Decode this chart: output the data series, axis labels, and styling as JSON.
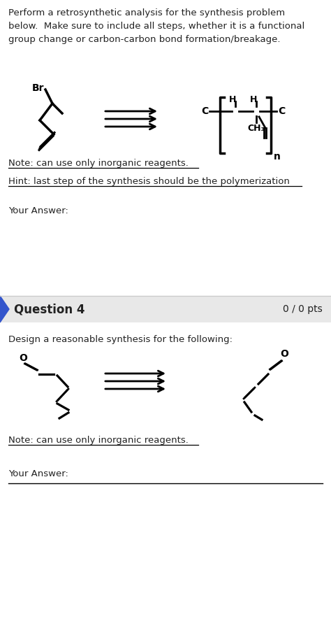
{
  "bg_color": "#ffffff",
  "triangle_color": "#3355cc",
  "text_color": "#222222",
  "q3_title_lines": [
    "Perform a retrosynthetic analysis for the synthesis problem",
    "below.  Make sure to include all steps, whether it is a functional",
    "group change or carbon-carbon bond formation/breakage."
  ],
  "q3_note": "Note: can use only inorganic reagents.",
  "q3_hint": "Hint: last step of the synthesis should be the polymerization",
  "q3_answer": "Your Answer:",
  "q4_label": "Question 4",
  "q4_pts": "0 / 0 pts",
  "q4_desc": "Design a reasonable synthesis for the following:",
  "q4_note": "Note: can use only inorganic reagents.",
  "q4_answer": "Your Answer:",
  "separator_color": "#cccccc",
  "figsize": [
    4.74,
    8.85
  ],
  "dpi": 100
}
